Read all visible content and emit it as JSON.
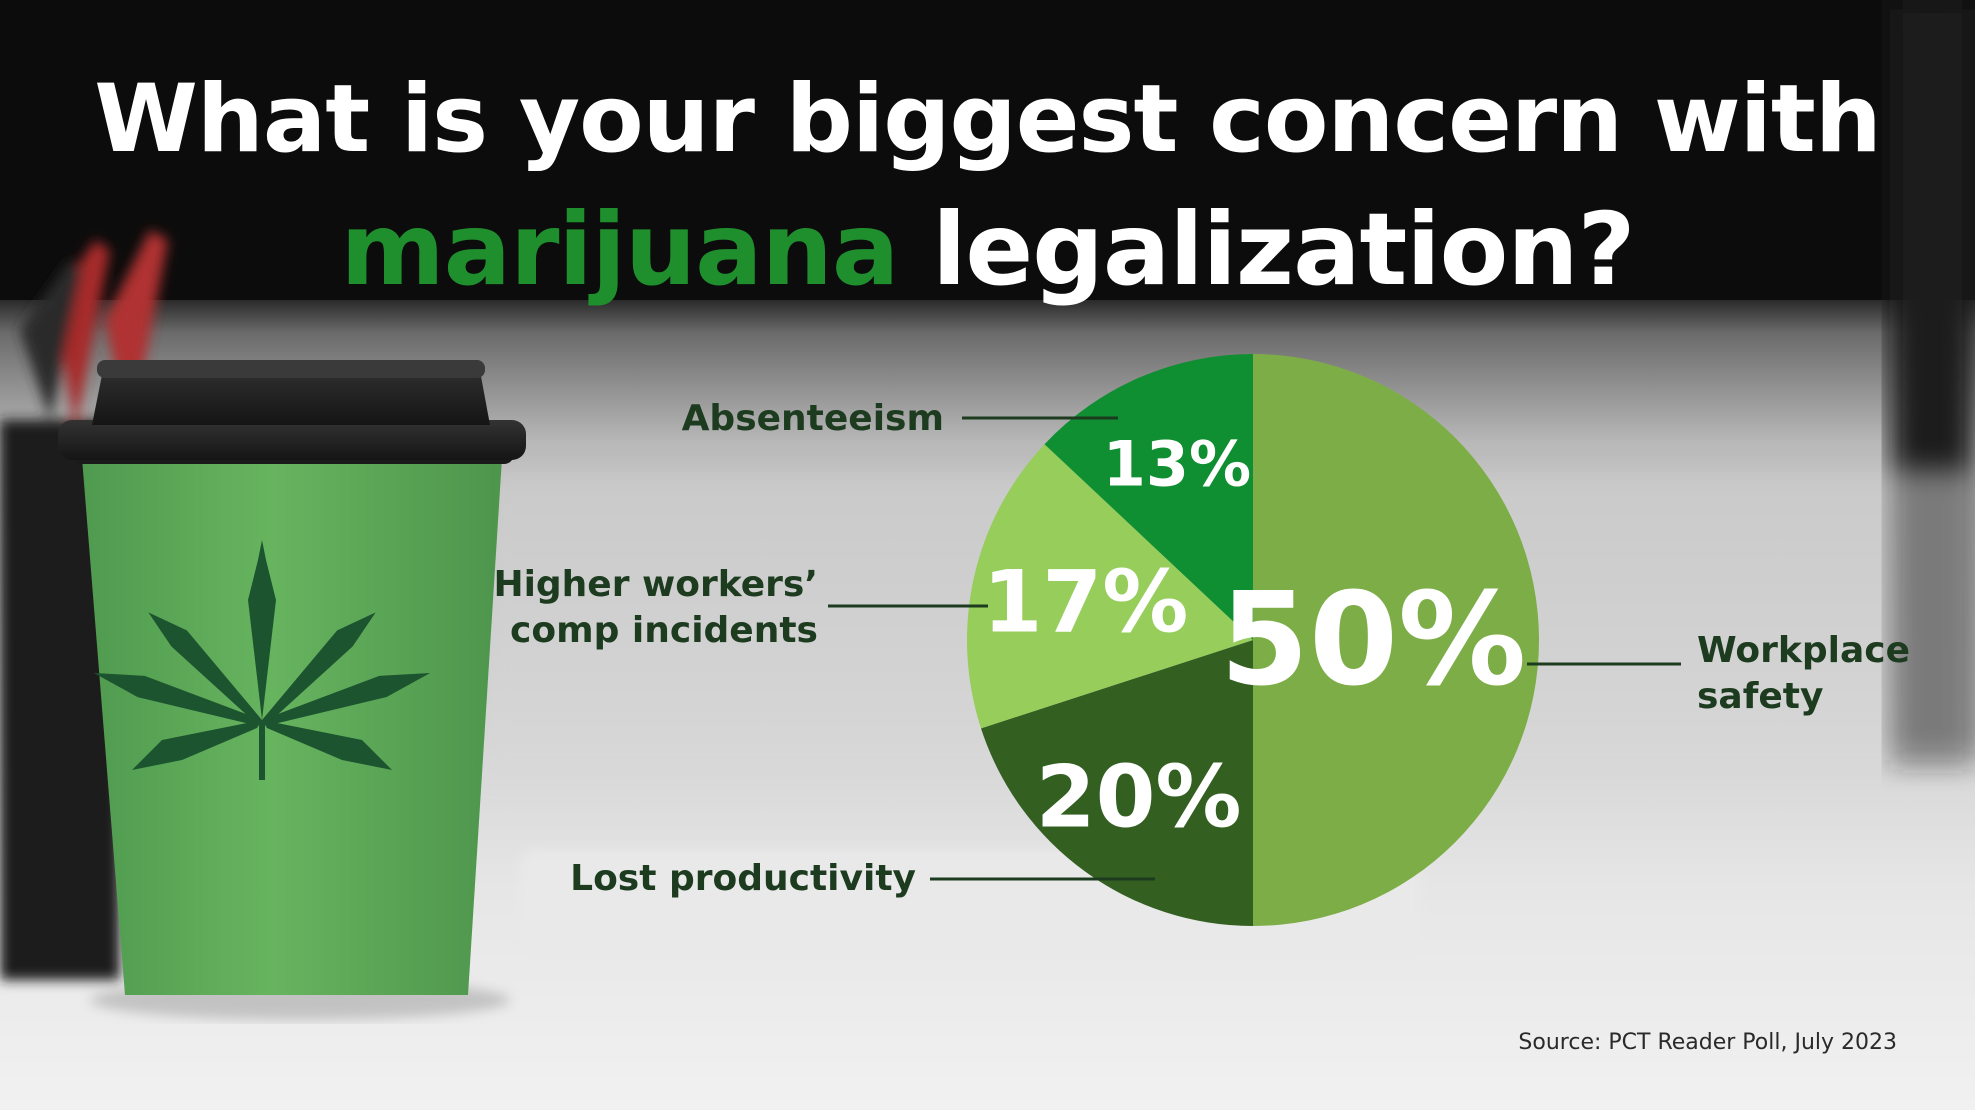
{
  "title": {
    "line1": "What is your biggest concern with",
    "line2_highlight": "marijuana",
    "line2_rest": " legalization?"
  },
  "colors": {
    "highlight": "#1f8f2e",
    "callout_text": "#1c3b1f",
    "slice_workplace": "#7dad47",
    "slice_lost": "#335f21",
    "slice_workers": "#96cd5b",
    "slice_absent": "#0f8f31"
  },
  "illustration": {
    "cup_icon": "cannabis-leaf-icon",
    "pencil_icon": "pencil-icon"
  },
  "chart_data": {
    "type": "pie",
    "title": "What is your biggest concern with marijuana legalization?",
    "slices": [
      {
        "label": "Workplace safety",
        "value": 50,
        "value_label": "50%",
        "color": "#7dad47"
      },
      {
        "label": "Lost productivity",
        "value": 20,
        "value_label": "20%",
        "color": "#335f21"
      },
      {
        "label": "Higher workers’ comp incidents",
        "value": 17,
        "value_label": "17%",
        "color": "#96cd5b"
      },
      {
        "label": "Absenteeism",
        "value": 13,
        "value_label": "13%",
        "color": "#0f8f31"
      }
    ],
    "labels": {
      "workplace": [
        "Workplace",
        "safety"
      ],
      "lost": [
        "Lost productivity"
      ],
      "workers": [
        "Higher workers’",
        "comp incidents"
      ],
      "absent": [
        "Absenteeism"
      ]
    },
    "source": "Source: PCT Reader Poll, July 2023"
  }
}
